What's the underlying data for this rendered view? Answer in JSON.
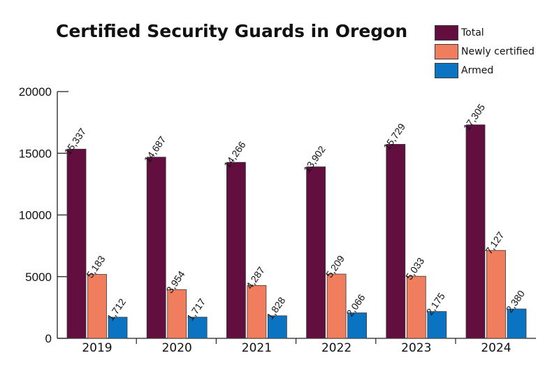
{
  "chart_data": {
    "type": "bar",
    "title": "Certified Security Guards in Oregon",
    "categories": [
      "2019",
      "2020",
      "2021",
      "2022",
      "2023",
      "2024"
    ],
    "series": [
      {
        "name": "Total",
        "color": "#620f3f",
        "values": [
          15337,
          14687,
          14266,
          13902,
          15729,
          17305
        ],
        "labels": [
          "15,337",
          "14,687",
          "14,266",
          "13,902",
          "15,729",
          "17,305"
        ]
      },
      {
        "name": "Newly certified",
        "color": "#f07d5d",
        "values": [
          5183,
          3954,
          4287,
          5209,
          5033,
          7127
        ],
        "labels": [
          "5,183",
          "3,954",
          "4,287",
          "5,209",
          "5,033",
          "7,127"
        ]
      },
      {
        "name": "Armed",
        "color": "#0a73c2",
        "values": [
          1712,
          1717,
          1828,
          2066,
          2175,
          2380
        ],
        "labels": [
          "1,712",
          "1,717",
          "1,828",
          "2,066",
          "2,175",
          "2,380"
        ]
      }
    ],
    "yticks": [
      "0",
      "5000",
      "10000",
      "15000",
      "20000"
    ],
    "ylim": [
      0,
      20000
    ],
    "legend_position": "top-right",
    "grid": false
  }
}
